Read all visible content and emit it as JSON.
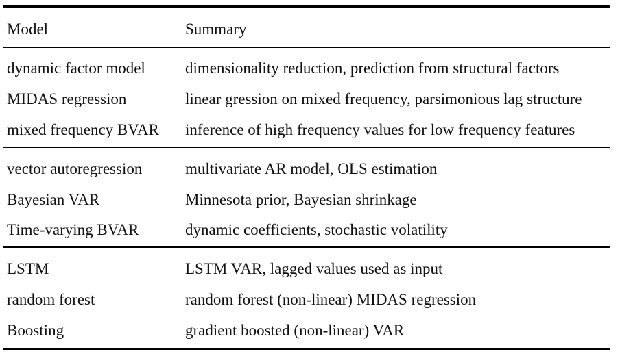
{
  "table": {
    "header": {
      "model": "Model",
      "summary": "Summary"
    },
    "groups": [
      {
        "rows": [
          {
            "model": "dynamic factor model",
            "summary": "dimensionality reduction, prediction from structural factors"
          },
          {
            "model": "MIDAS regression",
            "summary": "linear gression on mixed frequency, parsimonious lag structure"
          },
          {
            "model": "mixed frequency BVAR",
            "summary": "inference of high frequency values for low frequency features"
          }
        ]
      },
      {
        "rows": [
          {
            "model": "vector autoregression",
            "summary": "multivariate AR model, OLS estimation"
          },
          {
            "model": "Bayesian VAR",
            "summary": "Minnesota prior, Bayesian shrinkage"
          },
          {
            "model": "Time-varying BVAR",
            "summary": "dynamic coefficients, stochastic volatility"
          }
        ]
      },
      {
        "rows": [
          {
            "model": "LSTM",
            "summary": "LSTM VAR, lagged values used as input"
          },
          {
            "model": "random forest",
            "summary": "random forest (non-linear) MIDAS regression"
          },
          {
            "model": "Boosting",
            "summary": "gradient boosted (non-linear) VAR"
          }
        ]
      }
    ]
  }
}
